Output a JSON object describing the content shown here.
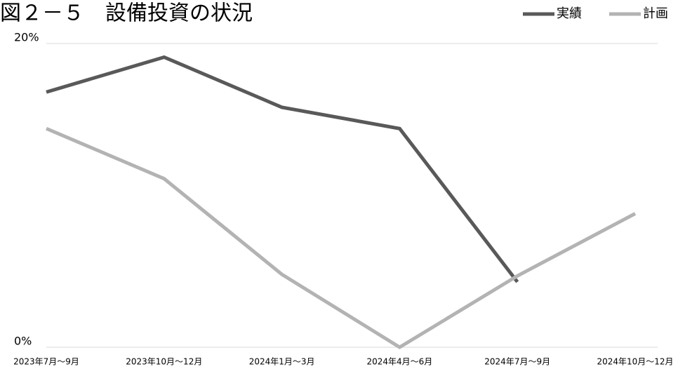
{
  "chart_data": {
    "type": "line",
    "title": "図２－５　設備投資の状況",
    "categories": [
      "2023年7月～9月",
      "2023年10月～12月",
      "2024年1月～3月",
      "2024年4月～6月",
      "2024年7月～9月",
      "2024年10月～12月"
    ],
    "series": [
      {
        "name": "実績",
        "color": "#595959",
        "values": [
          16.8,
          19.1,
          15.8,
          14.4,
          4.3,
          null
        ]
      },
      {
        "name": "計画",
        "color": "#b3b3b3",
        "values": [
          14.4,
          11.1,
          4.8,
          0,
          4.7,
          8.8
        ]
      }
    ],
    "ylim": [
      0,
      20
    ],
    "yticks": [
      {
        "value": 0,
        "label": "0%"
      },
      {
        "value": 20,
        "label": "20%"
      }
    ],
    "grid": true,
    "legend": "top-right"
  }
}
